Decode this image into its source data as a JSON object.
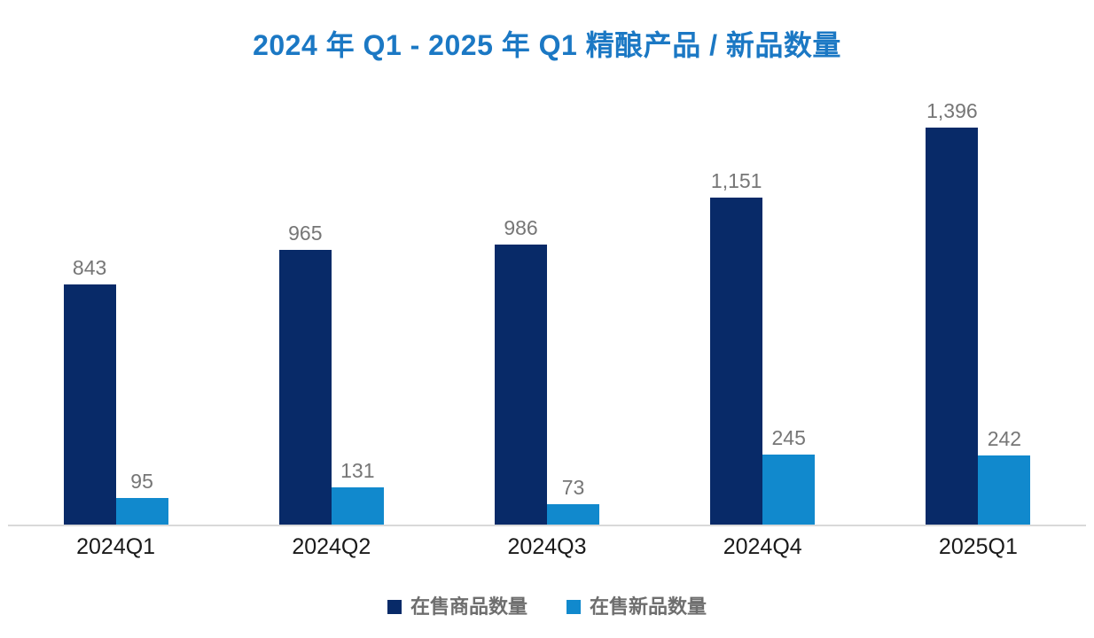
{
  "title": "2024 年 Q1 - 2025 年 Q1 精酿产品 / 新品数量",
  "colors": {
    "title": "#1b78c4",
    "series1": "#082a68",
    "series2": "#1189cd",
    "value_label": "#767676",
    "axis_label": "#1a1a1a",
    "legend_text": "#6e6e6e",
    "axis_line": "#d9d9d9",
    "background": "#ffffff"
  },
  "legend": {
    "items": [
      {
        "label": "在售商品数量",
        "color": "#082a68"
      },
      {
        "label": "在售新品数量",
        "color": "#1189cd"
      }
    ]
  },
  "chart_data": {
    "type": "bar",
    "title": "2024 年 Q1 - 2025 年 Q1 精酿产品 / 新品数量",
    "categories": [
      "2024Q1",
      "2024Q2",
      "2024Q3",
      "2024Q4",
      "2025Q1"
    ],
    "series": [
      {
        "name": "在售商品数量",
        "color": "#082a68",
        "values": [
          843,
          965,
          986,
          1151,
          1396
        ],
        "labels": [
          "843",
          "965",
          "986",
          "1,151",
          "1,396"
        ]
      },
      {
        "name": "在售新品数量",
        "color": "#1189cd",
        "values": [
          95,
          131,
          73,
          245,
          242
        ],
        "labels": [
          "95",
          "131",
          "73",
          "245",
          "242"
        ]
      }
    ],
    "xlabel": "",
    "ylabel": "",
    "ylim": [
      0,
      1396
    ],
    "grid": false,
    "y_axis_shown": false,
    "value_labels_shown": true,
    "legend_position": "bottom"
  }
}
